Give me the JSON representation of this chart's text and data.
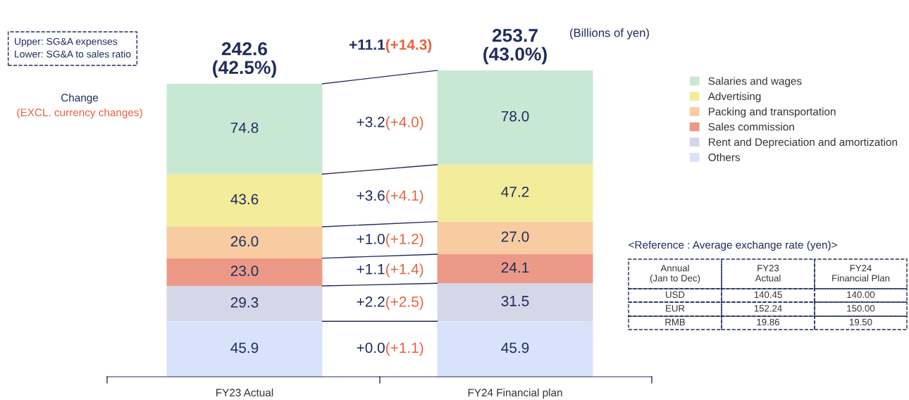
{
  "chart_data": {
    "type": "bar",
    "stacked": true,
    "legend": "right",
    "grid": false,
    "categories": [
      "FY23 Actual",
      "FY24 Financial plan"
    ],
    "series": [
      {
        "name": "Others",
        "color": "#d9e2fb",
        "values": [
          45.9,
          45.9
        ],
        "value_labels": [
          "45.9",
          "45.9"
        ]
      },
      {
        "name": "Rent and Depreciation and amortization",
        "color": "#d5d6e8",
        "values": [
          29.3,
          31.5
        ],
        "value_labels": [
          "29.3",
          "31.5"
        ]
      },
      {
        "name": "Sales commission",
        "color": "#ec9a87",
        "values": [
          23.0,
          24.1
        ],
        "value_labels": [
          "23.0",
          "24.1"
        ]
      },
      {
        "name": "Packing and transportation",
        "color": "#f8cba0",
        "values": [
          26.0,
          27.0
        ],
        "value_labels": [
          "26.0",
          "27.0"
        ]
      },
      {
        "name": "Advertising",
        "color": "#f2ec9b",
        "values": [
          43.6,
          47.2
        ],
        "value_labels": [
          "43.6",
          "47.2"
        ]
      },
      {
        "name": "Salaries and wages",
        "color": "#c9e8d3",
        "values": [
          74.8,
          78.0
        ],
        "value_labels": [
          "74.8",
          "78.0"
        ]
      }
    ],
    "totals": [
      "242.6\n(42.5%)",
      "253.7\n(43.0%)"
    ],
    "annotations": [
      "Upper: SG&A expenses\nLower: SG&A to sales ratio",
      "Change",
      "(EXCL. currency changes)",
      "(Billions of yen)",
      "+11.1",
      "(+14.3)",
      "+0.0",
      "(+1.1)",
      "+2.2",
      "(+2.5)",
      "+1.1",
      "(+1.4)",
      "+1.0",
      "(+1.2)",
      "+3.6",
      "(+4.1)",
      "+3.2",
      "(+4.0)",
      "<Reference : Average exchange rate (yen)>",
      "Annual\n(Jan to Dec)",
      "FY23\nActual",
      "FY24\nFinancial Plan",
      "USD",
      "140.45",
      "140.00",
      "EUR",
      "152.24",
      "150.00",
      "RMB",
      "19.86",
      "19.50"
    ]
  }
}
